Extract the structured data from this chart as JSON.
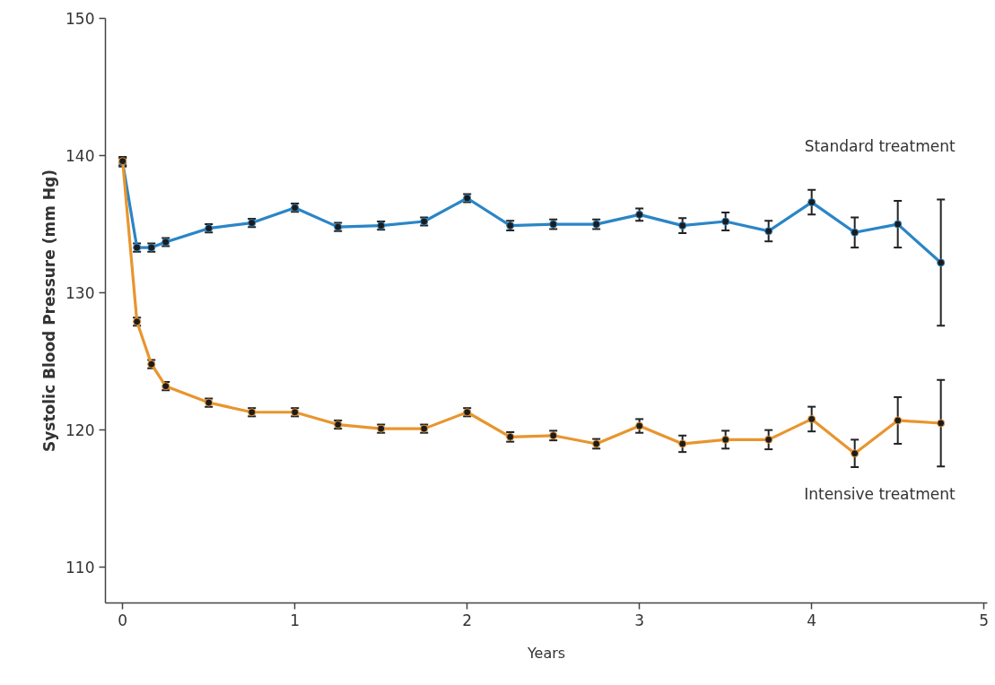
{
  "chart_data": {
    "type": "line",
    "xlabel": "Years",
    "ylabel": "Systolic Blood Pressure (mm Hg)",
    "x": [
      0,
      0.083,
      0.167,
      0.25,
      0.5,
      0.75,
      1,
      1.25,
      1.5,
      1.75,
      2,
      2.25,
      2.5,
      2.75,
      3,
      3.25,
      3.5,
      3.75,
      4,
      4.25,
      4.5,
      4.75
    ],
    "series": [
      {
        "name": "Standard treatment",
        "color": "#2a85c6",
        "values": [
          139.5,
          133.3,
          133.3,
          133.7,
          134.7,
          135.1,
          136.2,
          134.8,
          134.9,
          135.2,
          136.9,
          134.9,
          135.0,
          135.0,
          135.7,
          134.9,
          135.2,
          134.5,
          136.6,
          134.4,
          135.0,
          132.2
        ],
        "errors": [
          0.3,
          0.3,
          0.3,
          0.3,
          0.3,
          0.3,
          0.3,
          0.3,
          0.3,
          0.3,
          0.3,
          0.35,
          0.35,
          0.35,
          0.45,
          0.55,
          0.65,
          0.75,
          0.9,
          1.1,
          1.7,
          4.6
        ]
      },
      {
        "name": "Intensive treatment",
        "color": "#e8952e",
        "values": [
          139.6,
          127.9,
          124.8,
          123.2,
          122.0,
          121.3,
          121.3,
          120.4,
          120.1,
          120.1,
          121.3,
          119.5,
          119.6,
          119.0,
          120.3,
          119.0,
          119.3,
          119.3,
          120.8,
          118.3,
          120.7,
          120.5
        ],
        "errors": [
          0.3,
          0.3,
          0.3,
          0.3,
          0.3,
          0.3,
          0.3,
          0.3,
          0.3,
          0.3,
          0.3,
          0.35,
          0.35,
          0.35,
          0.5,
          0.6,
          0.65,
          0.7,
          0.9,
          1.0,
          1.7,
          3.15
        ]
      }
    ],
    "xlim": [
      -0.1,
      5.02
    ],
    "ylim": [
      107.4,
      150
    ],
    "xticks": [
      0,
      1,
      2,
      3,
      4,
      5
    ],
    "yticks": [
      110,
      120,
      130,
      140,
      150
    ],
    "marker": "circle",
    "line_style": "solid"
  }
}
